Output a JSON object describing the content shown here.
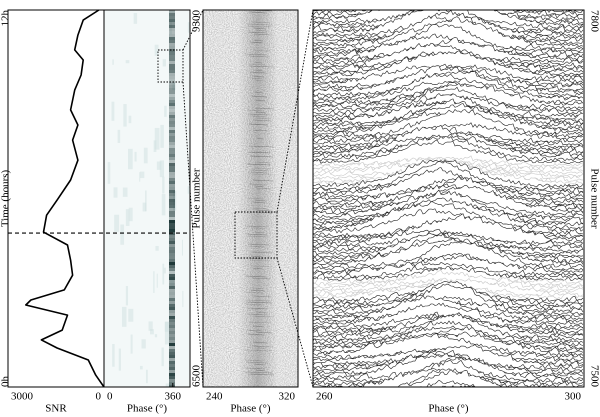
{
  "chart_data": [
    {
      "type": "line",
      "xlabel": "SNR",
      "ylabel": "Time (hours)",
      "xlim": [
        3000,
        0
      ],
      "xticks": [
        3000,
        0
      ],
      "ylim": [
        0,
        12
      ],
      "yticks": [
        {
          "value": 0,
          "label": "0h"
        },
        {
          "value": 12,
          "label": "12h"
        }
      ],
      "x": [
        12.0,
        11.68,
        11.2,
        10.73,
        10.41,
        9.93,
        9.45,
        8.82,
        8.34,
        7.86,
        7.22,
        6.59,
        5.95,
        5.47,
        4.93,
        4.52,
        4.04,
        3.56,
        3.09,
        2.77,
        2.61,
        2.29,
        1.81,
        1.5,
        1.24,
        0.86,
        0.38,
        0
      ],
      "values": [
        160,
        650,
        815,
        915,
        650,
        715,
        915,
        1045,
        815,
        980,
        815,
        1045,
        1465,
        1795,
        1890,
        1140,
        1045,
        980,
        1240,
        2285,
        2445,
        1140,
        1305,
        1955,
        1465,
        490,
        260,
        0
      ],
      "color": "#000000",
      "hline": 4.9
    },
    {
      "type": "image",
      "xlabel": "Phase (°)",
      "xlim": [
        0,
        450
      ],
      "xticks": [
        0,
        360
      ]
    },
    {
      "type": "image",
      "xlabel": "Phase (°)",
      "ylabel": "Pulse number",
      "xlim": [
        240,
        320
      ],
      "xticks": [
        240,
        320
      ],
      "ylim": [
        6500,
        9300
      ],
      "yticks": [
        6500,
        9300
      ]
    },
    {
      "type": "traces",
      "xlabel": "Phase (°)",
      "ylabel": "Pulse number",
      "xlim": [
        260,
        300
      ],
      "xticks": [
        260,
        300
      ],
      "ylim": [
        7500,
        7800
      ],
      "yticks": [
        7500,
        7800
      ]
    }
  ]
}
